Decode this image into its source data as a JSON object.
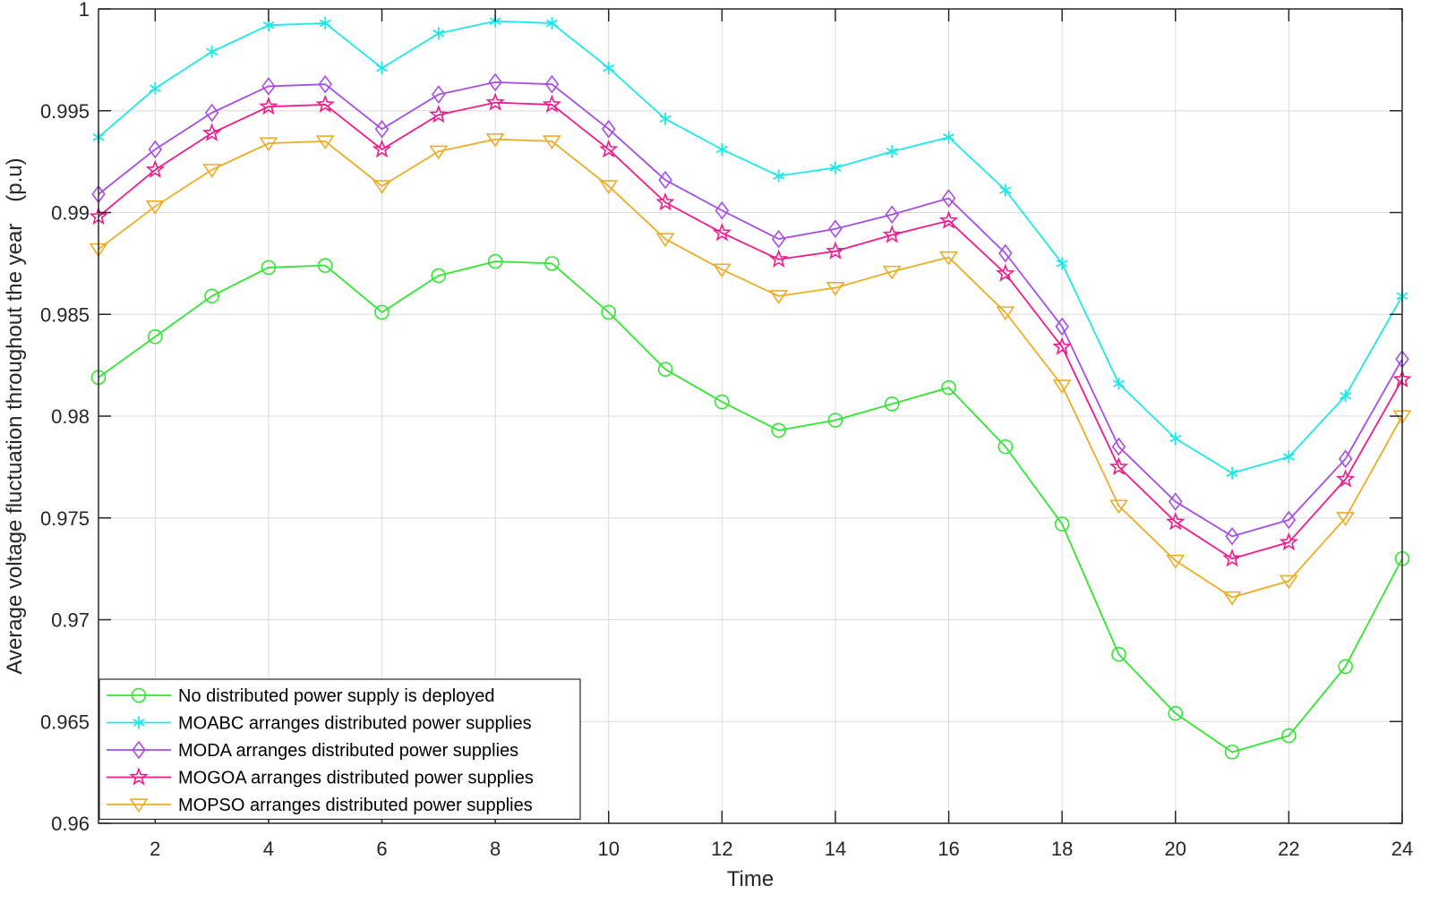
{
  "chart_data": {
    "type": "line",
    "title": "",
    "xlabel": "Time",
    "ylabel": "Average voltage fluctuation throughout the year　(p.u)",
    "xlim": [
      1,
      24
    ],
    "ylim": [
      0.96,
      1.0
    ],
    "grid": true,
    "legend_position": "bottom-left",
    "x": [
      1,
      2,
      3,
      4,
      5,
      6,
      7,
      8,
      9,
      10,
      11,
      12,
      13,
      14,
      15,
      16,
      17,
      18,
      19,
      20,
      21,
      22,
      23,
      24
    ],
    "x_ticks": [
      2,
      4,
      6,
      8,
      10,
      12,
      14,
      16,
      18,
      20,
      22,
      24
    ],
    "x_tick_labels": [
      "2",
      "4",
      "6",
      "8",
      "10",
      "12",
      "14",
      "16",
      "18",
      "20",
      "22",
      "24"
    ],
    "y_ticks": [
      0.96,
      0.965,
      0.97,
      0.975,
      0.98,
      0.985,
      0.99,
      0.995,
      1.0
    ],
    "y_tick_labels": [
      "0.96",
      "0.965",
      "0.97",
      "0.975",
      "0.98",
      "0.985",
      "0.99",
      "0.995",
      "1"
    ],
    "series": [
      {
        "name": "No distributed power supply is deployed",
        "color": "#33e533",
        "marker": "circle",
        "values": [
          0.9819,
          0.9839,
          0.9859,
          0.9873,
          0.9874,
          0.9851,
          0.9869,
          0.9876,
          0.9875,
          0.9851,
          0.9823,
          0.9807,
          0.9793,
          0.9798,
          0.9806,
          0.9814,
          0.9785,
          0.9747,
          0.9683,
          0.9654,
          0.9635,
          0.9643,
          0.9677,
          0.973
        ]
      },
      {
        "name": "MOABC arranges distributed power supplies",
        "color": "#1de8e8",
        "marker": "asterisk",
        "values": [
          0.9937,
          0.9961,
          0.9979,
          0.9992,
          0.9993,
          0.9971,
          0.9988,
          0.9994,
          0.9993,
          0.9971,
          0.9946,
          0.9931,
          0.9918,
          0.9922,
          0.993,
          0.9937,
          0.9911,
          0.9875,
          0.9816,
          0.9789,
          0.9772,
          0.978,
          0.981,
          0.9859
        ]
      },
      {
        "name": "MODA arranges distributed power supplies",
        "color": "#a64de6",
        "marker": "diamond",
        "values": [
          0.9909,
          0.9931,
          0.9949,
          0.9962,
          0.9963,
          0.9941,
          0.9958,
          0.9964,
          0.9963,
          0.9941,
          0.9916,
          0.9901,
          0.9887,
          0.9892,
          0.9899,
          0.9907,
          0.988,
          0.9844,
          0.9785,
          0.9758,
          0.9741,
          0.9749,
          0.9779,
          0.9828
        ]
      },
      {
        "name": "MOGOA arranges distributed power supplies",
        "color": "#f21a8c",
        "marker": "star",
        "values": [
          0.9898,
          0.9921,
          0.9939,
          0.9952,
          0.9953,
          0.9931,
          0.9948,
          0.9954,
          0.9953,
          0.9931,
          0.9905,
          0.989,
          0.9877,
          0.9881,
          0.9889,
          0.9896,
          0.987,
          0.9834,
          0.9775,
          0.9748,
          0.973,
          0.9738,
          0.9769,
          0.9818
        ]
      },
      {
        "name": "MOPSO arranges distributed power supplies",
        "color": "#ebad24",
        "marker": "triangle-down",
        "values": [
          0.9882,
          0.9903,
          0.9921,
          0.9934,
          0.9935,
          0.9913,
          0.993,
          0.9936,
          0.9935,
          0.9913,
          0.9887,
          0.9872,
          0.9859,
          0.9863,
          0.9871,
          0.9878,
          0.9851,
          0.9815,
          0.9756,
          0.9729,
          0.9711,
          0.9719,
          0.975,
          0.98
        ]
      }
    ]
  }
}
